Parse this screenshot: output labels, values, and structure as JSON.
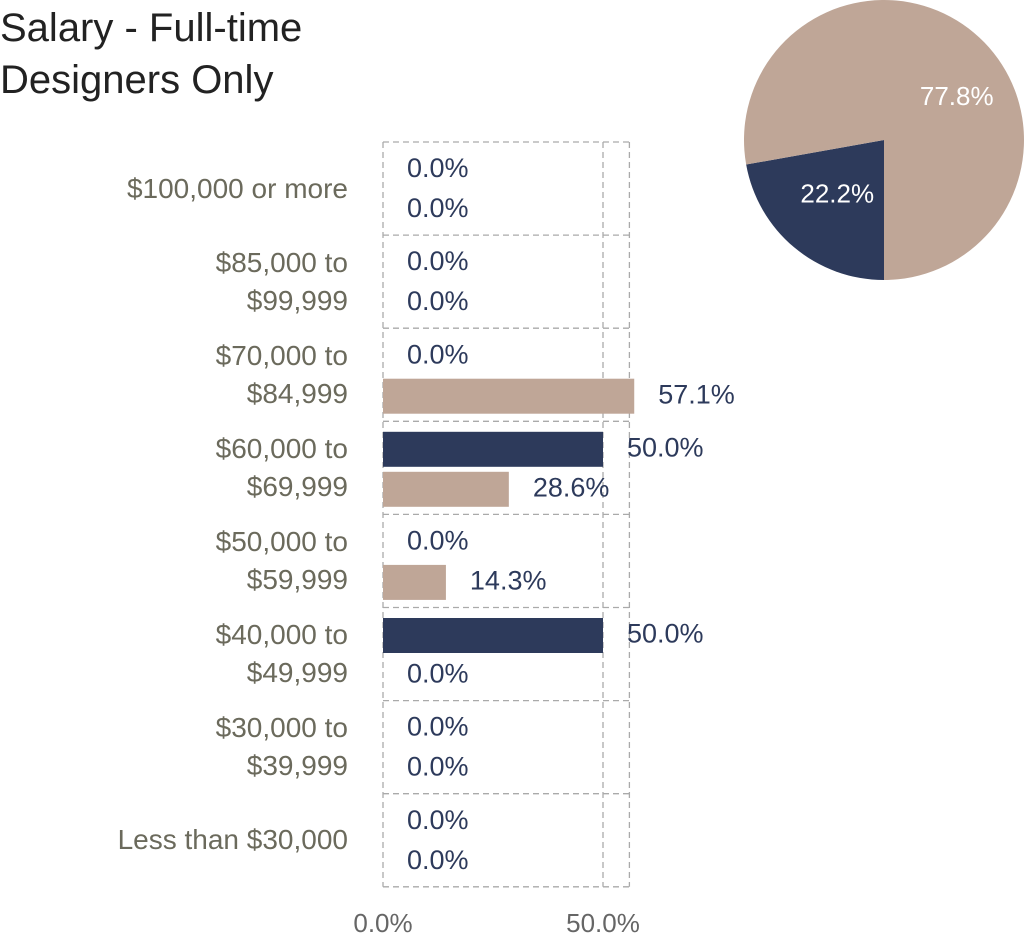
{
  "chart_data": [
    {
      "type": "barh",
      "title": "Salary - Full-time Designers Only",
      "categories": [
        "$100,000 or more",
        "$85,000 to $99,999",
        "$70,000 to $84,999",
        "$60,000 to $69,999",
        "$50,000 to $59,999",
        "$40,000 to $49,999",
        "$30,000 to $39,999",
        "Less than $30,000"
      ],
      "series": [
        {
          "color": "#2d3a5b",
          "values": [
            0,
            0,
            0,
            50,
            0,
            50,
            0,
            0
          ],
          "value_labels": [
            "0.0%",
            "0.0%",
            "0.0%",
            "50.0%",
            "0.0%",
            "50.0%",
            "0.0%",
            "0.0%"
          ]
        },
        {
          "color": "#bfa697",
          "values": [
            0,
            0,
            57.1,
            28.6,
            14.3,
            0,
            0,
            0
          ],
          "value_labels": [
            "0.0%",
            "0.0%",
            "57.1%",
            "28.6%",
            "14.3%",
            "0.0%",
            "0.0%",
            "0.0%"
          ]
        }
      ],
      "xlim": [
        0,
        56
      ],
      "xticks": [
        {
          "value": 0,
          "label": "0.0%"
        },
        {
          "value": 50,
          "label": "50.0%"
        }
      ],
      "grid": true
    },
    {
      "type": "pie",
      "values": [
        22.2,
        77.8
      ],
      "value_labels": [
        "22.2%",
        "77.8%"
      ],
      "colors": [
        "#2d3a5b",
        "#bfa697"
      ]
    }
  ]
}
